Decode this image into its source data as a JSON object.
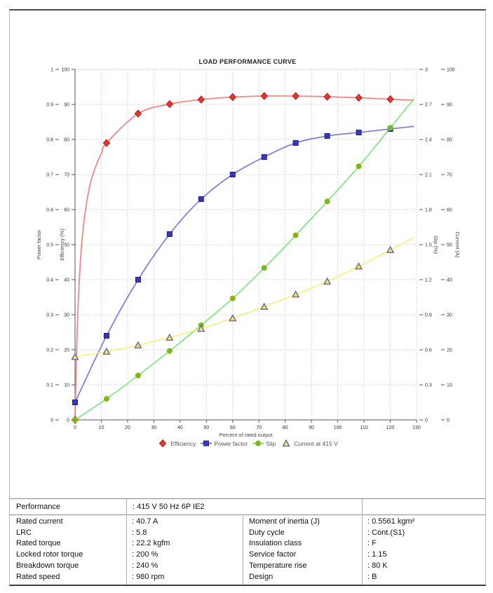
{
  "page_title": "LOAD PERFORMANCE CURVE",
  "chart_data": {
    "type": "line",
    "title": "LOAD PERFORMANCE CURVE",
    "grid": true,
    "legend_position": "bottom",
    "x": [
      0,
      12,
      24,
      36,
      48,
      60,
      72,
      84,
      96,
      108,
      120
    ],
    "axes": {
      "x": {
        "label": "Percent of rated output",
        "min": 0,
        "max": 130,
        "step": 10
      },
      "power_factor": {
        "label": "Power factor",
        "min": 0,
        "max": 1,
        "step": 0.1
      },
      "efficiency": {
        "label": "Efficiency (%)",
        "min": 0,
        "max": 100,
        "step": 10
      },
      "slip": {
        "label": "Slip (%)",
        "min": 0,
        "max": 3,
        "step": 0.3
      },
      "current": {
        "label": "Current (A)",
        "min": 0,
        "max": 100,
        "step": 10
      }
    },
    "series": [
      {
        "name": "Efficiency",
        "axis": "efficiency",
        "marker": "diamond",
        "color": "#f47070",
        "marker_fill": "#e8342e",
        "marker_stroke": "#b22222",
        "values": [
          0,
          79,
          87.4,
          90.1,
          91.4,
          92.1,
          92.4,
          92.4,
          92.2,
          91.9,
          91.5
        ],
        "lead_in": [
          [
            0,
            0
          ],
          [
            0.4,
            14
          ],
          [
            0.8,
            25
          ],
          [
            1.5,
            38
          ],
          [
            2.5,
            50
          ],
          [
            4,
            60
          ],
          [
            6,
            68
          ],
          [
            8.5,
            73.5
          ],
          [
            10.2,
            76.3
          ]
        ],
        "legend_line": false
      },
      {
        "name": "Power factor",
        "axis": "power_factor",
        "marker": "square",
        "color": "#6a6ada",
        "marker_fill": "#3636c8",
        "marker_stroke": "#1f1f78",
        "values": [
          0.05,
          0.24,
          0.4,
          0.53,
          0.63,
          0.7,
          0.75,
          0.79,
          0.81,
          0.82,
          0.83
        ],
        "legend_line": true
      },
      {
        "name": "Slip",
        "axis": "slip",
        "marker": "circle",
        "color": "#70e270",
        "marker_fill": "#44cc33",
        "marker_stroke": "#d89b00",
        "values": [
          0,
          0.18,
          0.38,
          0.59,
          0.81,
          1.04,
          1.3,
          1.58,
          1.87,
          2.17,
          2.5
        ],
        "legend_line": true
      },
      {
        "name": "Current at 415 V",
        "axis": "current",
        "marker": "triangle",
        "color": "#f6ee6e",
        "marker_fill": "#f2e54e",
        "marker_stroke": "#4f4fc0",
        "values": [
          18,
          19.5,
          21.3,
          23.5,
          26,
          29,
          32.3,
          35.8,
          39.5,
          43.8,
          48.5
        ],
        "legend_line": false
      }
    ]
  },
  "table": {
    "performance": {
      "label": "Performance",
      "value": ": 415 V 50 Hz 6P IE2"
    },
    "rows": [
      {
        "l1": "Rated current",
        "v1": ": 40.7 A",
        "l2": "Moment of inertia (J)",
        "v2": ": 0.5561 kgm²"
      },
      {
        "l1": "LRC",
        "v1": ": 5.8",
        "l2": "Duty cycle",
        "v2": ": Cont.(S1)"
      },
      {
        "l1": "Rated torque",
        "v1": ": 22.2 kgfm",
        "l2": "Insulation class",
        "v2": ": F"
      },
      {
        "l1": "Locked rotor torque",
        "v1": ": 200 %",
        "l2": "Service factor",
        "v2": ": 1.15"
      },
      {
        "l1": "Breakdown torque",
        "v1": ": 240 %",
        "l2": "Temperature rise",
        "v2": ": 80 K"
      },
      {
        "l1": "Rated speed",
        "v1": ": 980 rpm",
        "l2": "Design",
        "v2": ": B"
      }
    ]
  },
  "colors": {
    "grid": "#cdcdcd",
    "axis": "#555555",
    "tick_text": "#333333",
    "axis_title_text": "#444444",
    "plot_border": "#b9b9b9"
  }
}
